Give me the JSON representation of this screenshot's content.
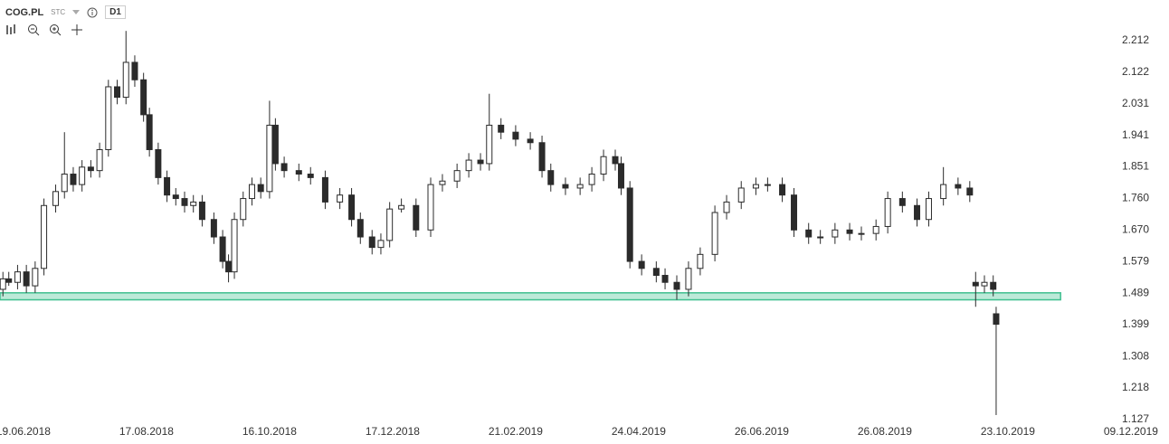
{
  "header": {
    "symbol": "COG.PL",
    "market": "STC",
    "interval": "D1"
  },
  "chart_data": {
    "type": "candlestick",
    "up_color": "#ffffff",
    "down_color": "#2b2b2b",
    "outline_color": "#2b2b2b",
    "x": [
      1,
      3,
      6,
      9,
      12,
      15,
      19,
      22,
      25,
      28,
      31,
      34,
      37,
      40,
      43,
      46,
      49,
      51,
      54,
      57,
      60,
      63,
      66,
      69,
      73,
      76,
      78,
      80,
      83,
      86,
      89,
      92,
      94,
      97,
      102,
      106,
      111,
      116,
      120,
      123,
      127,
      130,
      133,
      137,
      142,
      147,
      151,
      156,
      160,
      164,
      167,
      171,
      176,
      181,
      185,
      188,
      193,
      198,
      202,
      206,
      210,
      212,
      215,
      219,
      224,
      227,
      231,
      235,
      239,
      244,
      248,
      253,
      258,
      262,
      267,
      271,
      276,
      280,
      285,
      290,
      294,
      299,
      303,
      308,
      313,
      317,
      322,
      327,
      331,
      333,
      336,
      339,
      340
    ],
    "open": [
      1.5,
      1.53,
      1.52,
      1.55,
      1.51,
      1.56,
      1.74,
      1.78,
      1.83,
      1.8,
      1.85,
      1.84,
      1.9,
      2.08,
      2.05,
      2.15,
      2.1,
      2.0,
      1.9,
      1.82,
      1.77,
      1.76,
      1.74,
      1.75,
      1.7,
      1.65,
      1.58,
      1.55,
      1.7,
      1.76,
      1.8,
      1.78,
      1.97,
      1.86,
      1.84,
      1.83,
      1.82,
      1.75,
      1.77,
      1.7,
      1.65,
      1.62,
      1.64,
      1.73,
      1.74,
      1.67,
      1.8,
      1.81,
      1.84,
      1.87,
      1.86,
      1.97,
      1.95,
      1.93,
      1.92,
      1.84,
      1.8,
      1.79,
      1.8,
      1.83,
      1.88,
      1.86,
      1.79,
      1.58,
      1.56,
      1.54,
      1.52,
      1.5,
      1.56,
      1.6,
      1.72,
      1.75,
      1.79,
      1.8,
      1.8,
      1.77,
      1.67,
      1.65,
      1.65,
      1.67,
      1.66,
      1.66,
      1.68,
      1.76,
      1.74,
      1.7,
      1.76,
      1.8,
      1.79,
      1.52,
      1.51,
      1.52,
      1.43
    ],
    "high": [
      1.55,
      1.55,
      1.57,
      1.57,
      1.58,
      1.76,
      1.8,
      1.95,
      1.85,
      1.87,
      1.87,
      1.92,
      2.1,
      2.1,
      2.24,
      2.17,
      2.12,
      2.02,
      1.92,
      1.84,
      1.79,
      1.78,
      1.77,
      1.77,
      1.72,
      1.67,
      1.6,
      1.72,
      1.78,
      1.82,
      1.82,
      2.04,
      1.99,
      1.88,
      1.86,
      1.85,
      1.84,
      1.79,
      1.79,
      1.72,
      1.67,
      1.66,
      1.75,
      1.76,
      1.76,
      1.82,
      1.83,
      1.86,
      1.89,
      1.89,
      2.06,
      1.99,
      1.97,
      1.95,
      1.94,
      1.86,
      1.82,
      1.82,
      1.85,
      1.9,
      1.9,
      1.88,
      1.81,
      1.6,
      1.58,
      1.56,
      1.54,
      1.58,
      1.62,
      1.74,
      1.77,
      1.81,
      1.82,
      1.82,
      1.82,
      1.79,
      1.69,
      1.67,
      1.69,
      1.69,
      1.68,
      1.7,
      1.78,
      1.78,
      1.76,
      1.78,
      1.85,
      1.82,
      1.81,
      1.55,
      1.54,
      1.54,
      1.45
    ],
    "low": [
      1.48,
      1.51,
      1.5,
      1.49,
      1.49,
      1.54,
      1.72,
      1.76,
      1.78,
      1.78,
      1.82,
      1.82,
      1.88,
      2.03,
      2.03,
      2.08,
      1.98,
      1.88,
      1.8,
      1.75,
      1.74,
      1.72,
      1.72,
      1.68,
      1.63,
      1.56,
      1.52,
      1.53,
      1.68,
      1.74,
      1.76,
      1.76,
      1.84,
      1.82,
      1.81,
      1.8,
      1.73,
      1.73,
      1.68,
      1.63,
      1.6,
      1.6,
      1.62,
      1.72,
      1.65,
      1.65,
      1.78,
      1.79,
      1.82,
      1.84,
      1.84,
      1.93,
      1.91,
      1.9,
      1.82,
      1.78,
      1.77,
      1.77,
      1.78,
      1.81,
      1.84,
      1.77,
      1.56,
      1.54,
      1.52,
      1.5,
      1.47,
      1.48,
      1.54,
      1.58,
      1.7,
      1.73,
      1.77,
      1.78,
      1.75,
      1.65,
      1.63,
      1.63,
      1.63,
      1.64,
      1.64,
      1.64,
      1.66,
      1.72,
      1.68,
      1.68,
      1.74,
      1.77,
      1.75,
      1.45,
      1.49,
      1.48,
      1.14
    ],
    "close": [
      1.53,
      1.52,
      1.55,
      1.51,
      1.56,
      1.74,
      1.78,
      1.83,
      1.8,
      1.85,
      1.84,
      1.9,
      2.08,
      2.05,
      2.15,
      2.1,
      2.0,
      1.9,
      1.82,
      1.77,
      1.76,
      1.74,
      1.75,
      1.7,
      1.65,
      1.58,
      1.55,
      1.7,
      1.76,
      1.8,
      1.78,
      1.97,
      1.86,
      1.84,
      1.83,
      1.82,
      1.75,
      1.77,
      1.7,
      1.65,
      1.62,
      1.64,
      1.73,
      1.74,
      1.67,
      1.8,
      1.81,
      1.84,
      1.87,
      1.86,
      1.97,
      1.95,
      1.93,
      1.92,
      1.84,
      1.8,
      1.79,
      1.8,
      1.83,
      1.88,
      1.86,
      1.79,
      1.58,
      1.56,
      1.54,
      1.52,
      1.5,
      1.56,
      1.6,
      1.72,
      1.75,
      1.79,
      1.8,
      1.8,
      1.77,
      1.67,
      1.65,
      1.65,
      1.67,
      1.66,
      1.66,
      1.68,
      1.76,
      1.74,
      1.7,
      1.76,
      1.8,
      1.79,
      1.77,
      1.51,
      1.52,
      1.5,
      1.4
    ],
    "zone": {
      "x": [
        0,
        362
      ],
      "range": [
        1.47,
        1.49
      ],
      "color": "#3fbf8f"
    },
    "xlim": [
      0,
      399
    ],
    "xticks": [
      {
        "value": 8,
        "label": "19.06.2018"
      },
      {
        "value": 50,
        "label": "17.08.2018"
      },
      {
        "value": 92,
        "label": "16.10.2018"
      },
      {
        "value": 134,
        "label": "17.12.2018"
      },
      {
        "value": 176,
        "label": "21.02.2019"
      },
      {
        "value": 218,
        "label": "24.04.2019"
      },
      {
        "value": 260,
        "label": "26.06.2019"
      },
      {
        "value": 302,
        "label": "26.08.2019"
      },
      {
        "value": 344,
        "label": "23.10.2019"
      },
      {
        "value": 386,
        "label": "09.12.2019"
      }
    ],
    "ylim": [
      1.127,
      2.212
    ],
    "yticks": [
      2.212,
      2.122,
      2.031,
      1.941,
      1.851,
      {
        "value": 1.76,
        "label": "1.760"
      },
      {
        "value": 1.67,
        "label": "1.670"
      },
      1.579,
      1.489,
      1.399,
      1.308,
      1.218,
      1.127
    ]
  }
}
